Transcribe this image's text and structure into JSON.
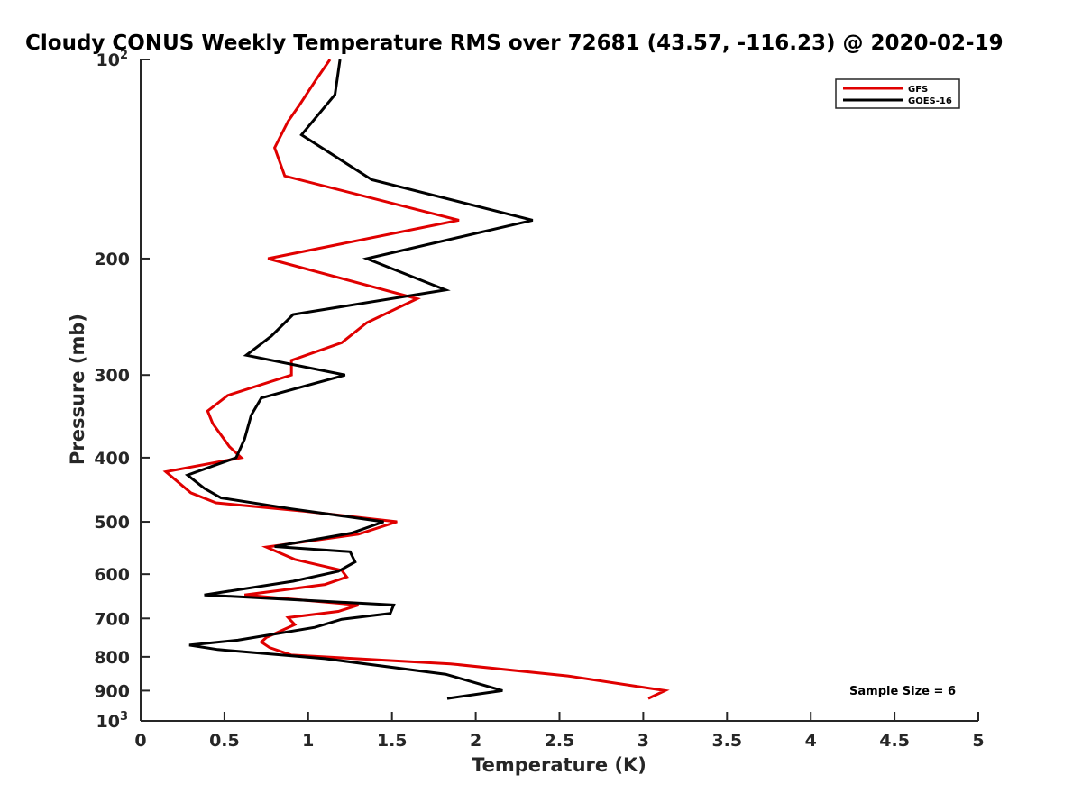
{
  "chart_data": {
    "type": "line",
    "title": "Cloudy CONUS Weekly Temperature RMS over 72681 (43.57, -116.23) @ 2020-02-19",
    "xlabel": "Temperature (K)",
    "ylabel": "Pressure (mb)",
    "xlim": [
      0,
      5
    ],
    "ylim": [
      100,
      1000
    ],
    "y_scale": "log",
    "y_reversed": true,
    "grid": false,
    "legend_position": "top-right",
    "x_ticks": [
      {
        "value": 0,
        "label": "0"
      },
      {
        "value": 0.5,
        "label": "0.5"
      },
      {
        "value": 1,
        "label": "1"
      },
      {
        "value": 1.5,
        "label": "1.5"
      },
      {
        "value": 2,
        "label": "2"
      },
      {
        "value": 2.5,
        "label": "2.5"
      },
      {
        "value": 3,
        "label": "3"
      },
      {
        "value": 3.5,
        "label": "3.5"
      },
      {
        "value": 4,
        "label": "4"
      },
      {
        "value": 4.5,
        "label": "4.5"
      },
      {
        "value": 5,
        "label": "5"
      }
    ],
    "y_ticks": [
      {
        "value": 100,
        "label": "10",
        "sup": "2"
      },
      {
        "value": 200,
        "label": "200"
      },
      {
        "value": 300,
        "label": "300"
      },
      {
        "value": 400,
        "label": "400"
      },
      {
        "value": 500,
        "label": "500"
      },
      {
        "value": 600,
        "label": "600"
      },
      {
        "value": 700,
        "label": "700"
      },
      {
        "value": 800,
        "label": "800"
      },
      {
        "value": 900,
        "label": "900"
      },
      {
        "value": 1000,
        "label": "10",
        "sup": "3"
      }
    ],
    "series": [
      {
        "name": "GFS",
        "color": "#e00000",
        "points": [
          [
            1.13,
            100
          ],
          [
            1.05,
            107
          ],
          [
            0.95,
            117
          ],
          [
            0.88,
            124
          ],
          [
            0.8,
            136
          ],
          [
            0.86,
            150
          ],
          [
            1.9,
            175
          ],
          [
            0.76,
            200
          ],
          [
            1.65,
            230
          ],
          [
            1.35,
            250
          ],
          [
            1.2,
            268
          ],
          [
            0.9,
            285
          ],
          [
            0.9,
            300
          ],
          [
            0.52,
            322
          ],
          [
            0.4,
            340
          ],
          [
            0.43,
            355
          ],
          [
            0.53,
            385
          ],
          [
            0.6,
            400
          ],
          [
            0.15,
            420
          ],
          [
            0.3,
            452
          ],
          [
            0.45,
            468
          ],
          [
            0.98,
            482
          ],
          [
            1.53,
            500
          ],
          [
            1.3,
            522
          ],
          [
            0.75,
            546
          ],
          [
            0.92,
            570
          ],
          [
            1.2,
            592
          ],
          [
            1.23,
            606
          ],
          [
            1.1,
            622
          ],
          [
            0.62,
            645
          ],
          [
            1.3,
            668
          ],
          [
            1.18,
            683
          ],
          [
            0.88,
            698
          ],
          [
            0.92,
            715
          ],
          [
            0.75,
            748
          ],
          [
            0.72,
            760
          ],
          [
            0.77,
            775
          ],
          [
            0.9,
            795
          ],
          [
            1.85,
            820
          ],
          [
            2.55,
            855
          ],
          [
            3.13,
            900
          ],
          [
            3.03,
            925
          ]
        ]
      },
      {
        "name": "GOES-16",
        "color": "#000000",
        "points": [
          [
            1.19,
            100
          ],
          [
            1.16,
            113
          ],
          [
            0.96,
            130
          ],
          [
            1.38,
            152
          ],
          [
            2.34,
            175
          ],
          [
            1.35,
            200
          ],
          [
            1.82,
            223
          ],
          [
            0.91,
            243
          ],
          [
            0.78,
            262
          ],
          [
            0.63,
            280
          ],
          [
            1.22,
            300
          ],
          [
            0.72,
            325
          ],
          [
            0.66,
            345
          ],
          [
            0.62,
            375
          ],
          [
            0.57,
            400
          ],
          [
            0.28,
            425
          ],
          [
            0.38,
            445
          ],
          [
            0.48,
            460
          ],
          [
            0.9,
            478
          ],
          [
            1.45,
            500
          ],
          [
            1.26,
            520
          ],
          [
            0.8,
            545
          ],
          [
            1.25,
            555
          ],
          [
            1.28,
            575
          ],
          [
            1.18,
            594
          ],
          [
            0.91,
            615
          ],
          [
            0.38,
            645
          ],
          [
            1.51,
            668
          ],
          [
            1.49,
            688
          ],
          [
            1.2,
            702
          ],
          [
            1.04,
            722
          ],
          [
            0.58,
            755
          ],
          [
            0.29,
            768
          ],
          [
            0.46,
            780
          ],
          [
            1.1,
            805
          ],
          [
            1.82,
            850
          ],
          [
            2.16,
            900
          ],
          [
            1.83,
            925
          ]
        ]
      }
    ],
    "annotations": [
      {
        "text": "Sample Size = 6",
        "position": "bottom-right"
      }
    ]
  }
}
